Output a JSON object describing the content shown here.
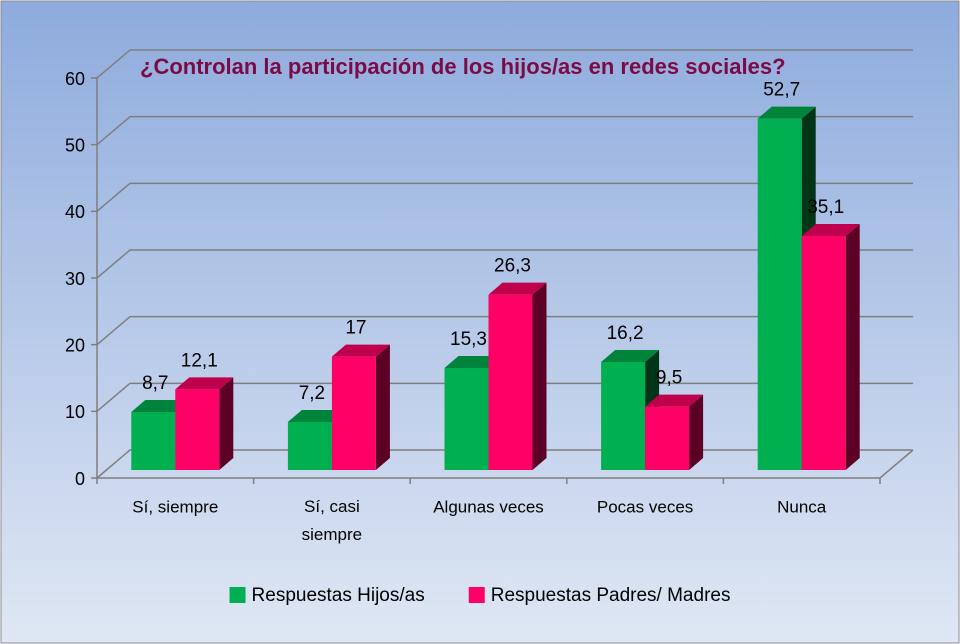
{
  "chart_data": {
    "type": "bar3d",
    "title": "¿Controlan la participación de los hijos/as en redes sociales?",
    "categories": [
      "Sí, siempre",
      "Sí, casi siempre",
      "Algunas veces",
      "Pocas veces",
      "Nunca"
    ],
    "series": [
      {
        "name": "Respuestas Hijos/as",
        "color": "#00b050",
        "values": [
          8.7,
          7.2,
          15.3,
          16.2,
          52.7
        ],
        "value_labels": [
          "8,7",
          "7,2",
          "15,3",
          "16,2",
          "52,7"
        ]
      },
      {
        "name": "Respuestas Padres/ Madres",
        "color": "#ff0066",
        "values": [
          12.1,
          17,
          26.3,
          9.5,
          35.1
        ],
        "value_labels": [
          "12,1",
          "17",
          "26,3",
          "9,5",
          "35,1"
        ]
      }
    ],
    "ylim": [
      0,
      60
    ],
    "yticks": [
      0,
      10,
      20,
      30,
      40,
      50,
      60
    ],
    "grid": true,
    "legend": "bottom"
  }
}
